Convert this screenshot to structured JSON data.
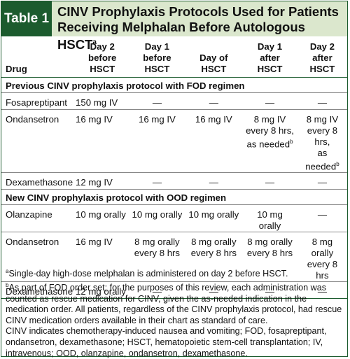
{
  "header": {
    "badge": "Table 1",
    "title": "CINV Prophylaxis Protocols Used for Patients Receiving Melphalan Before Autologous HSCT",
    "title_sup": "a"
  },
  "columns": {
    "drug": "Drug",
    "day2_before": [
      "Day 2",
      "before",
      "HSCT"
    ],
    "day1_before": [
      "Day 1",
      "before",
      "HSCT"
    ],
    "day_of": [
      "Day of",
      "HSCT"
    ],
    "day1_after": [
      "Day 1",
      "after",
      "HSCT"
    ],
    "day2_after": [
      "Day 2",
      "after",
      "HSCT"
    ]
  },
  "sections": [
    {
      "title": "Previous CINV prophylaxis protocol with FOD regimen",
      "rows": [
        {
          "drug": "Fosapreptipant",
          "d2b": "150 mg IV",
          "d1b": "—",
          "d0": "—",
          "d1a": "—",
          "d2a": "—"
        },
        {
          "drug": "Ondansetron",
          "d2b": "16 mg IV",
          "d1b": "16 mg IV",
          "d0": "16 mg IV",
          "d1a": [
            "8 mg IV",
            "every 8 hrs,",
            "as needed"
          ],
          "d1a_sup": "b",
          "d2a": [
            "8 mg IV",
            "every 8 hrs,",
            "as needed"
          ],
          "d2a_sup": "b"
        },
        {
          "drug": "Dexamethasone",
          "d2b": "12 mg IV",
          "d1b": "—",
          "d0": "—",
          "d1a": "—",
          "d2a": "—"
        }
      ]
    },
    {
      "title": "New CINV prophylaxis protocol with OOD regimen",
      "rows": [
        {
          "drug": "Olanzapine",
          "d2b": "10 mg orally",
          "d1b": "10 mg orally",
          "d0": "10 mg orally",
          "d1a": "10 mg orally",
          "d2a": "—"
        },
        {
          "drug": "Ondansetron",
          "d2b": "16 mg IV",
          "d1b": [
            "8 mg orally",
            "every 8 hrs"
          ],
          "d0": [
            "8 mg orally",
            "every 8 hrs"
          ],
          "d1a": [
            "8 mg orally",
            "every 8 hrs"
          ],
          "d2a": [
            "8 mg orally",
            "every 8 hrs"
          ]
        },
        {
          "drug": "Dexamethasone",
          "d2b": "12 mg orally",
          "d1b": "—",
          "d0": "—",
          "d1a": "—",
          "d2a": "—"
        }
      ]
    }
  ],
  "notes": {
    "a_mark": "a",
    "a": "Single-day high-dose melphalan is administered on day 2 before HSCT.",
    "b_mark": "b",
    "b": "As part of FOD order set; for the purposes of this review, each administration was counted as rescue medication for CINV, given the as-needed indication in the medication order. All patients, regardless of the CINV prophylaxis protocol, had rescue CINV medication orders available in their chart as standard of care.",
    "abbrev": "CINV indicates chemotherapy-induced nausea and vomiting; FOD, fosapreptipant, ondansetron, dexamethasone; HSCT, hematopoietic stem-cell transplantation; IV, intravenous; OOD, olanzapine, ondansetron, dexamethasone."
  },
  "colors": {
    "brand_green": "#1c5b2e",
    "title_bg": "#dbe7cd"
  }
}
